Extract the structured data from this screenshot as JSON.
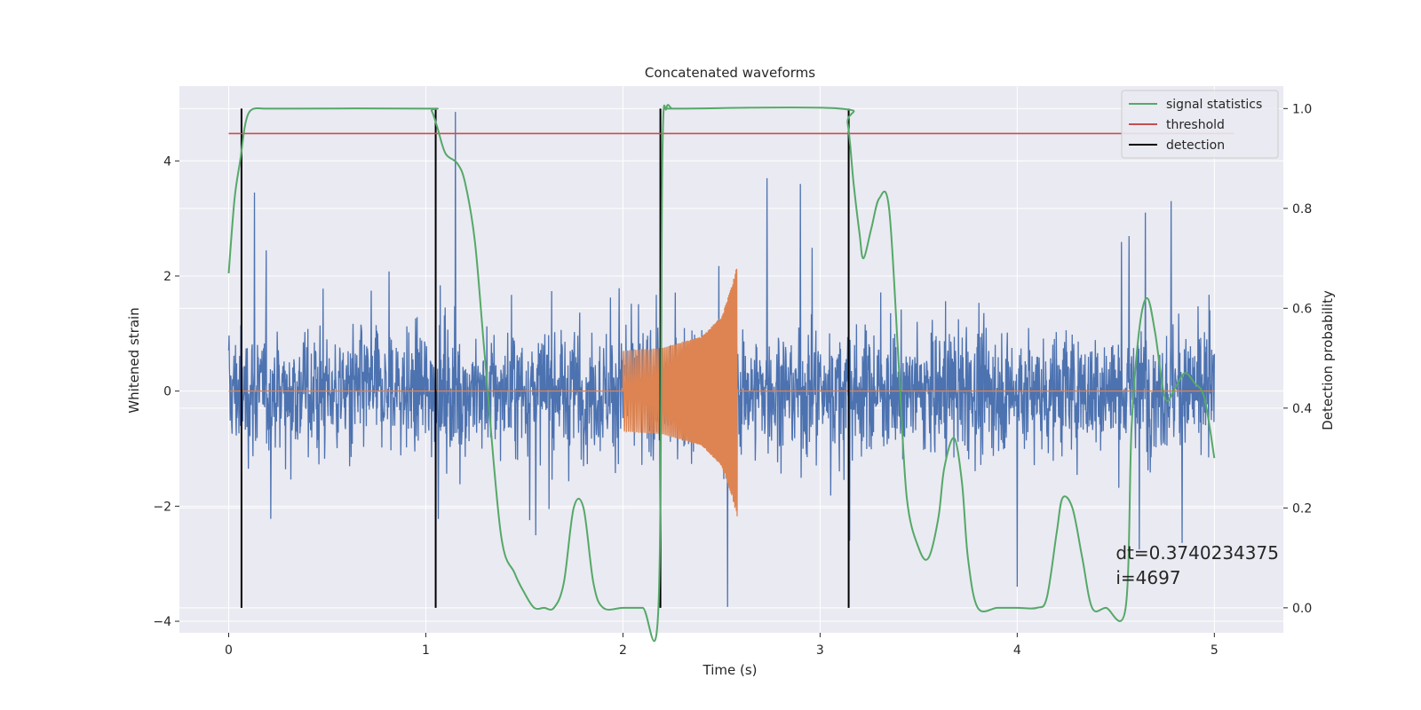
{
  "chart_data": {
    "type": "line",
    "title": "Concatenated waveforms",
    "xlabel": "Time (s)",
    "ylabel": "Whitened strain",
    "ylabel_right": "Detection probability",
    "xlim": [
      -0.25,
      5.35
    ],
    "ylim_left": [
      -4.2,
      5.3
    ],
    "ylim_right": [
      -0.05,
      1.045
    ],
    "xticks": [
      0,
      1,
      2,
      3,
      4,
      5
    ],
    "yticks_left": [
      -4,
      -2,
      0,
      2,
      4
    ],
    "yticks_right": [
      0.0,
      0.2,
      0.4,
      0.6,
      0.8,
      1.0
    ],
    "ytick_labels_left": [
      "−4",
      "−2",
      "0",
      "2",
      "4"
    ],
    "ytick_labels_right": [
      "0.0",
      "0.2",
      "0.4",
      "0.6",
      "0.8",
      "1.0"
    ],
    "grid": true,
    "legend_position": "upper-right",
    "series": [
      {
        "name": "whitened strain (noise)",
        "axis": "left",
        "color": "#4c72b0",
        "style": "noise",
        "x_range": [
          0,
          5
        ],
        "typical_amplitude": 1.0,
        "peak_values": [
          {
            "x": 1.15,
            "y": 4.85
          },
          {
            "x": 2.53,
            "y": -3.75
          },
          {
            "x": 2.73,
            "y": 3.7
          },
          {
            "x": 0.13,
            "y": 3.45
          },
          {
            "x": 4.78,
            "y": 3.3
          },
          {
            "x": 4.62,
            "y": -2.75
          },
          {
            "x": 4.0,
            "y": -3.4
          },
          {
            "x": 2.9,
            "y": 3.6
          },
          {
            "x": 3.15,
            "y": -2.6
          },
          {
            "x": 4.65,
            "y": 3.1
          }
        ]
      },
      {
        "name": "injected waveform",
        "axis": "left",
        "color": "#dd8452",
        "style": "chirp",
        "x": [
          0.0,
          2.0,
          2.0,
          2.2,
          2.4,
          2.5,
          2.55,
          2.58,
          2.58,
          5.0
        ],
        "envelope": [
          0.0,
          0.0,
          0.7,
          0.75,
          0.95,
          1.3,
          1.8,
          2.2,
          0.0,
          0.0
        ]
      },
      {
        "name": "signal statistics",
        "axis": "right",
        "color": "#55a868",
        "x": [
          0.0,
          0.03,
          0.06,
          0.08,
          0.1,
          0.13,
          0.18,
          0.3,
          1.0,
          1.03,
          1.06,
          1.1,
          1.16,
          1.2,
          1.25,
          1.3,
          1.38,
          1.45,
          1.5,
          1.55,
          1.6,
          1.65,
          1.7,
          1.75,
          1.8,
          1.85,
          1.9,
          2.0,
          2.1,
          2.18,
          2.2,
          2.22,
          2.25,
          2.3,
          3.1,
          3.14,
          3.17,
          3.2,
          3.22,
          3.26,
          3.3,
          3.35,
          3.4,
          3.44,
          3.5,
          3.55,
          3.6,
          3.63,
          3.68,
          3.72,
          3.75,
          3.8,
          3.9,
          4.0,
          4.1,
          4.15,
          4.2,
          4.23,
          4.28,
          4.33,
          4.38,
          4.45,
          4.55,
          4.58,
          4.62,
          4.66,
          4.7,
          4.75,
          4.8,
          4.85,
          4.9,
          4.95,
          5.0
        ],
        "y": [
          0.67,
          0.82,
          0.9,
          0.96,
          0.99,
          1.0,
          1.0,
          1.0,
          1.0,
          0.995,
          0.96,
          0.91,
          0.89,
          0.85,
          0.73,
          0.5,
          0.15,
          0.07,
          0.03,
          0.0,
          0.0,
          0.0,
          0.05,
          0.2,
          0.2,
          0.05,
          0.0,
          0.0,
          0.0,
          0.0,
          0.9,
          1.0,
          1.0,
          1.0,
          1.0,
          0.97,
          0.85,
          0.75,
          0.7,
          0.76,
          0.82,
          0.8,
          0.48,
          0.22,
          0.12,
          0.1,
          0.18,
          0.28,
          0.34,
          0.25,
          0.1,
          0.0,
          0.0,
          0.0,
          0.0,
          0.02,
          0.15,
          0.22,
          0.2,
          0.1,
          0.0,
          0.0,
          0.0,
          0.36,
          0.56,
          0.62,
          0.55,
          0.42,
          0.44,
          0.47,
          0.45,
          0.42,
          0.3
        ]
      },
      {
        "name": "threshold",
        "axis": "right",
        "color": "#c44e52",
        "x": [
          0.0,
          5.1
        ],
        "y": [
          0.95,
          0.95
        ]
      },
      {
        "name": "detection",
        "axis": "right",
        "color": "#000000",
        "style": "vlines",
        "x": [
          0.065,
          1.05,
          2.19,
          3.145
        ],
        "ymin": 0.0,
        "ymax": 1.0
      }
    ],
    "legend": [
      {
        "label": "signal statistics",
        "color": "#55a868"
      },
      {
        "label": "threshold",
        "color": "#c44e52"
      },
      {
        "label": "detection",
        "color": "#000000"
      }
    ],
    "annotations": [
      {
        "text": "dt=0.3740234375",
        "x": 4.5,
        "y_right": 0.11
      },
      {
        "text": " i=4697",
        "x": 4.5,
        "y_right": 0.06
      }
    ],
    "colors": {
      "background": "#eaeaf2",
      "grid": "#ffffff",
      "legend_bg": "#eaeaf2"
    }
  }
}
